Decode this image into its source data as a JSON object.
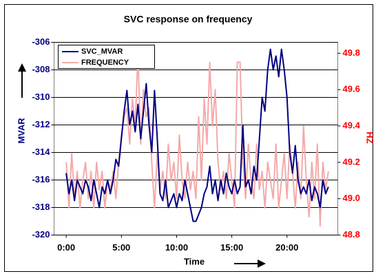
{
  "chart_data": {
    "type": "line",
    "title": "SVC response on frequency",
    "x_label": "Time",
    "y_label": "MVAR",
    "y2_label": "HZ",
    "xlim": [
      -1.1,
      24.6
    ],
    "xticks": [
      {
        "value": 0,
        "label": "0:00"
      },
      {
        "value": 5,
        "label": "5:00"
      },
      {
        "value": 10,
        "label": "10:00"
      },
      {
        "value": 15,
        "label": "15:00"
      },
      {
        "value": 20,
        "label": "20:00"
      }
    ],
    "ylim": [
      -320,
      -306
    ],
    "yticks": [
      -320,
      -318,
      -316,
      -314,
      -312,
      -310,
      -308,
      -306
    ],
    "y2lim": [
      48.8,
      49.86
    ],
    "y2ticks": [
      48.8,
      {
        "value": 49,
        "label": "49.0"
      },
      49.2,
      49.4,
      49.6,
      49.8
    ],
    "grid": true,
    "legend": "upper left",
    "x": [
      0,
      0.25,
      0.5,
      0.75,
      1,
      1.25,
      1.5,
      1.75,
      2,
      2.25,
      2.5,
      2.75,
      3,
      3.25,
      3.5,
      3.75,
      4,
      4.25,
      4.5,
      4.75,
      5,
      5.25,
      5.5,
      5.75,
      6,
      6.25,
      6.5,
      6.75,
      7,
      7.25,
      7.5,
      7.75,
      8,
      8.25,
      8.5,
      8.75,
      9,
      9.25,
      9.5,
      9.75,
      10,
      10.25,
      10.5,
      10.75,
      11,
      11.25,
      11.5,
      11.75,
      12,
      12.25,
      12.5,
      12.75,
      13,
      13.25,
      13.5,
      13.75,
      14,
      14.25,
      14.5,
      14.75,
      15,
      15.25,
      15.5,
      15.75,
      16,
      16.25,
      16.5,
      16.75,
      17,
      17.25,
      17.5,
      17.75,
      18,
      18.25,
      18.5,
      18.75,
      19,
      19.25,
      19.5,
      19.75,
      20,
      20.25,
      20.5,
      20.75,
      21,
      21.25,
      21.5,
      21.75,
      22,
      22.25,
      22.5,
      22.75,
      23,
      23.25,
      23.5,
      23.75
    ],
    "series": [
      {
        "name": "SVC_MVAR",
        "color": "#000080",
        "values": [
          -315.5,
          -317,
          -316,
          -317.5,
          -316,
          -316.5,
          -317,
          -316,
          -316.5,
          -317.5,
          -316,
          -317,
          -318,
          -316.5,
          -317,
          -316,
          -317,
          -316,
          -314.5,
          -315,
          -313,
          -311,
          -309.5,
          -312,
          -311,
          -312.5,
          -310.5,
          -313,
          -311,
          -309,
          -312,
          -314,
          -309.5,
          -313,
          -317,
          -317.5,
          -316,
          -318,
          -317.5,
          -317,
          -318,
          -317,
          -317.5,
          -316,
          -317,
          -318,
          -319,
          -319,
          -318.5,
          -318,
          -317,
          -316.5,
          -315,
          -317,
          -316,
          -317.5,
          -316,
          -317,
          -315.5,
          -316.5,
          -317,
          -316,
          -317,
          -316.5,
          -312,
          -316.5,
          -316,
          -317,
          -315,
          -316,
          -313,
          -310,
          -311,
          -308,
          -306.5,
          -308,
          -307,
          -308.5,
          -306.5,
          -308,
          -310,
          -314,
          -315.5,
          -313.5,
          -316,
          -317,
          -316.5,
          -317,
          -316,
          -317.5,
          -316.5,
          -317,
          -318,
          -316,
          -317,
          -316.5
        ]
      },
      {
        "name": "FREQUENCY",
        "color": "#f4a9a9",
        "axis": "y2",
        "values": [
          49.2,
          48.95,
          49.25,
          49.0,
          49.15,
          48.95,
          49.1,
          49.2,
          49.0,
          49.15,
          48.95,
          49.2,
          49.05,
          49.15,
          48.95,
          49.1,
          49.05,
          49.15,
          49.0,
          49.2,
          49.35,
          49.45,
          49.5,
          49.3,
          49.55,
          49.4,
          49.8,
          49.3,
          49.6,
          49.45,
          49.5,
          49.2,
          48.95,
          49.25,
          49.05,
          49.15,
          49.0,
          49.3,
          49.1,
          49.2,
          49.0,
          49.35,
          49.1,
          49.0,
          49.2,
          49.05,
          49.15,
          49.0,
          49.45,
          49.1,
          49.55,
          49.3,
          49.75,
          49.4,
          49.6,
          49.2,
          49.05,
          49.15,
          49.0,
          49.25,
          49.1,
          48.95,
          49.75,
          49.75,
          49.2,
          49.0,
          49.3,
          49.1,
          49.0,
          49.3,
          49.05,
          49.15,
          48.95,
          49.2,
          49.1,
          49.0,
          49.3,
          48.95,
          49.1,
          49.25,
          49.0,
          49.3,
          49.15,
          48.95,
          49.2,
          49.0,
          49.4,
          49.1,
          48.9,
          49.2,
          49.0,
          49.3,
          48.85,
          49.2,
          49.05,
          49.15
        ]
      }
    ]
  }
}
